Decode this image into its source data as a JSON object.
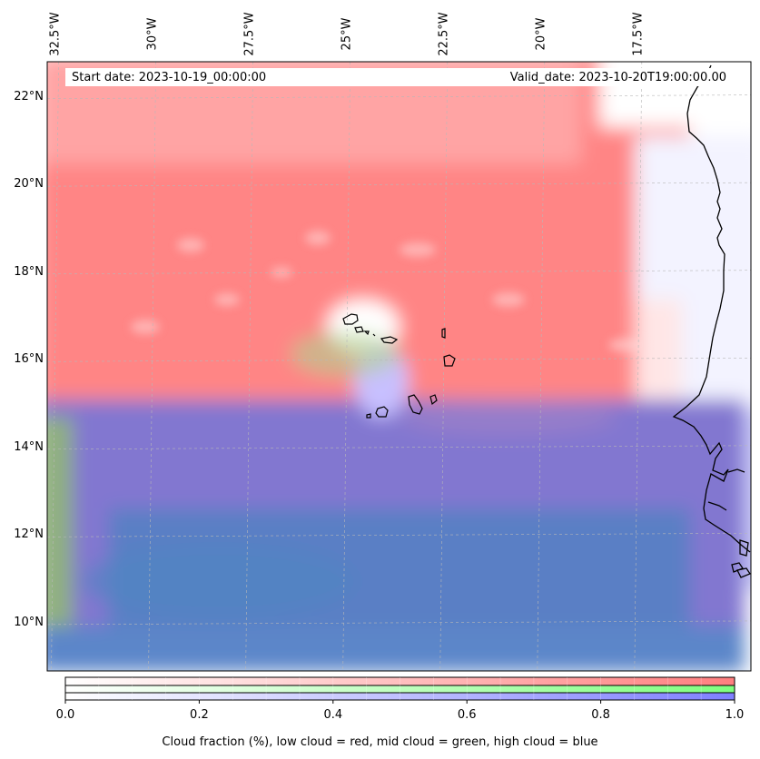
{
  "header": {
    "start_date": "Start date: 2023-10-19_00:00:00",
    "valid_date": "Valid_date: 2023-10-20T19:00:00.00"
  },
  "axes": {
    "lon_labels": [
      "32.5°W",
      "30°W",
      "27.5°W",
      "25°W",
      "22.5°W",
      "20°W",
      "17.5°W"
    ],
    "lat_labels": [
      "22°N",
      "20°N",
      "18°N",
      "16°N",
      "14°N",
      "12°N",
      "10°N"
    ]
  },
  "colorbar": {
    "ticks": [
      "0.0",
      "0.2",
      "0.4",
      "0.6",
      "0.8",
      "1.0"
    ],
    "label": "Cloud fraction (%), low cloud = red, mid cloud = green, high cloud = blue",
    "colors": {
      "low": "#ff7f7f",
      "mid": "#7fff7f",
      "high": "#7f7fff"
    }
  },
  "chart_data": {
    "type": "map",
    "lon_range": [
      -32.7,
      -14.6
    ],
    "lat_range": [
      8.9,
      22.8
    ],
    "lon_ticks": [
      -32.5,
      -30,
      -27.5,
      -25,
      -22.5,
      -20,
      -17.5
    ],
    "lat_ticks": [
      22,
      20,
      18,
      16,
      14,
      12,
      10
    ],
    "grid": true,
    "colorbar_range": [
      0.0,
      1.0
    ]
  }
}
